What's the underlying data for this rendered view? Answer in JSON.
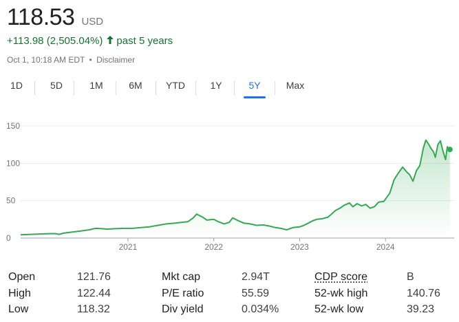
{
  "quote": {
    "price": "118.53",
    "currency": "USD",
    "change": "+113.98 (2,505.04%)",
    "period": "past 5 years",
    "timestamp": "Oct 1, 10:18 AM EDT",
    "separator": "•",
    "disclaimer": "Disclaimer",
    "up_color": "#137333"
  },
  "tabs": [
    {
      "label": "1D"
    },
    {
      "label": "5D"
    },
    {
      "label": "1M"
    },
    {
      "label": "6M"
    },
    {
      "label": "YTD"
    },
    {
      "label": "1Y"
    },
    {
      "label": "5Y",
      "active": true
    },
    {
      "label": "Max"
    }
  ],
  "chart_data": {
    "type": "line",
    "line_color": "#34a853",
    "ylim": [
      0,
      150
    ],
    "yticks": [
      "150",
      "100",
      "50",
      "0"
    ],
    "xticks": [
      "2021",
      "2022",
      "2023",
      "2024"
    ],
    "grid": true,
    "series": [
      {
        "x": [
          2019.75,
          2019.85,
          2019.95,
          2020.05,
          2020.15,
          2020.2,
          2020.25,
          2020.35,
          2020.45,
          2020.55,
          2020.62,
          2020.7,
          2020.75,
          2020.85,
          2020.95,
          2021.05,
          2021.15,
          2021.25,
          2021.35,
          2021.45,
          2021.55,
          2021.62,
          2021.7,
          2021.76,
          2021.8,
          2021.87,
          2021.92,
          2022.0,
          2022.05,
          2022.12,
          2022.18,
          2022.22,
          2022.27,
          2022.35,
          2022.42,
          2022.5,
          2022.58,
          2022.65,
          2022.72,
          2022.78,
          2022.85,
          2022.92,
          2023.0,
          2023.05,
          2023.1,
          2023.15,
          2023.2,
          2023.27,
          2023.33,
          2023.38,
          2023.42,
          2023.47,
          2023.52,
          2023.58,
          2023.62,
          2023.67,
          2023.72,
          2023.77,
          2023.82,
          2023.87,
          2023.92,
          2023.98,
          2024.05,
          2024.1,
          2024.15,
          2024.2,
          2024.25,
          2024.28,
          2024.32,
          2024.36,
          2024.4,
          2024.44,
          2024.47,
          2024.5,
          2024.53,
          2024.56,
          2024.58,
          2024.61,
          2024.64,
          2024.67,
          2024.7,
          2024.72,
          2024.75
        ],
        "values": [
          4.4,
          4.8,
          5.2,
          5.8,
          6.0,
          5.0,
          6.5,
          8.0,
          9.5,
          11.0,
          13.0,
          12.5,
          12.0,
          12.5,
          13.0,
          13.0,
          14.0,
          15.0,
          17.0,
          19.0,
          20.0,
          21.0,
          22.0,
          27.0,
          32.0,
          28.0,
          24.0,
          25.0,
          22.0,
          19.0,
          21.0,
          27.0,
          24.0,
          20.0,
          19.0,
          17.0,
          17.5,
          16.0,
          14.0,
          13.0,
          11.0,
          14.0,
          15.0,
          17.0,
          20.0,
          23.0,
          25.0,
          26.0,
          28.0,
          33.0,
          37.0,
          40.0,
          44.0,
          47.0,
          42.0,
          46.0,
          43.0,
          45.0,
          40.0,
          42.0,
          48.0,
          49.0,
          60.0,
          78.0,
          87.0,
          95.0,
          88.0,
          85.0,
          76.0,
          90.0,
          97.0,
          120.0,
          131.0,
          126.0,
          120.0,
          115.0,
          108.0,
          125.0,
          130.0,
          116.0,
          105.0,
          122.0,
          118.53
        ]
      }
    ]
  },
  "stats": [
    {
      "label": "Open",
      "value": "121.76"
    },
    {
      "label": "High",
      "value": "122.44"
    },
    {
      "label": "Low",
      "value": "118.32"
    },
    {
      "label": "Mkt cap",
      "value": "2.94T"
    },
    {
      "label": "P/E ratio",
      "value": "55.59"
    },
    {
      "label": "Div yield",
      "value": "0.034%"
    },
    {
      "label": "CDP score",
      "value": "B"
    },
    {
      "label": "52-wk high",
      "value": "140.76"
    },
    {
      "label": "52-wk low",
      "value": "39.23"
    }
  ]
}
